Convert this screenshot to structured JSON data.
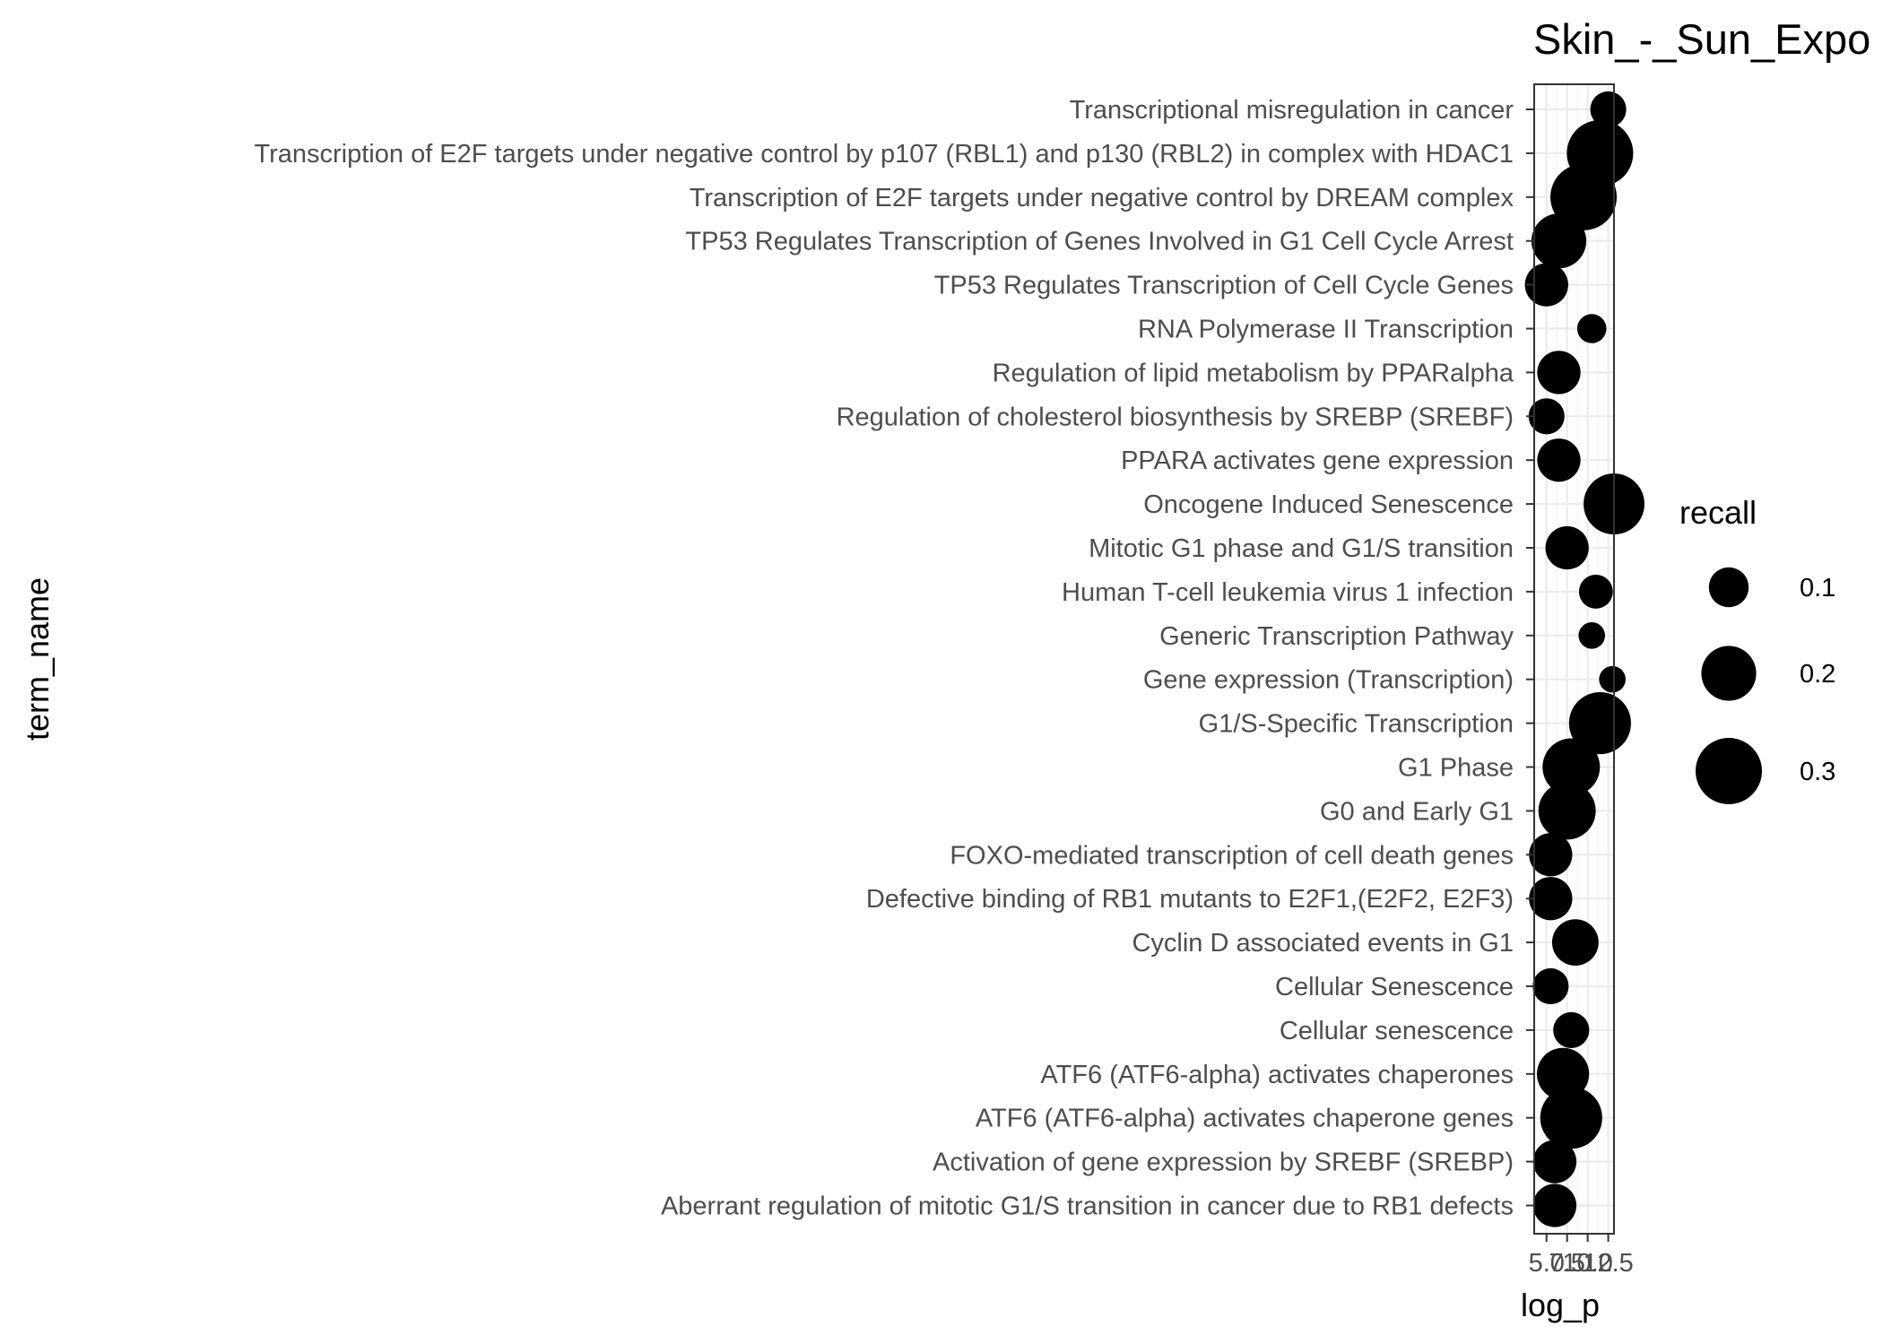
{
  "chart_data": {
    "type": "scatter",
    "title": "Skin_-_Sun_Expo",
    "xlabel": "log_p",
    "ylabel": "term_name",
    "x_ticks": [
      5.0,
      7.5,
      10.0,
      12.5
    ],
    "x_tick_labels": [
      "5.0",
      "7.5",
      "10.0",
      "12.5"
    ],
    "xlim": [
      3.5,
      13.2
    ],
    "grid": true,
    "legend": {
      "title": "recall",
      "placement": "right",
      "entries": [
        {
          "label": "0.1",
          "value": 0.1
        },
        {
          "label": "0.2",
          "value": 0.2
        },
        {
          "label": "0.3",
          "value": 0.3
        }
      ]
    },
    "categories": [
      "Transcriptional misregulation in cancer",
      "Transcription of E2F targets under negative control by p107 (RBL1) and p130 (RBL2) in complex with HDAC1",
      "Transcription of E2F targets under negative control by DREAM complex",
      "TP53 Regulates Transcription of Genes Involved in G1 Cell Cycle Arrest",
      "TP53 Regulates Transcription of Cell Cycle Genes",
      "RNA Polymerase II Transcription",
      "Regulation of lipid metabolism by PPARalpha",
      "Regulation of cholesterol biosynthesis by SREBP (SREBF)",
      "PPARA activates gene expression",
      "Oncogene Induced Senescence",
      "Mitotic G1 phase and G1/S transition",
      "Human T-cell leukemia virus 1 infection",
      "Generic Transcription Pathway",
      "Gene expression (Transcription)",
      "G1/S-Specific Transcription",
      "G1 Phase",
      "G0 and Early G1",
      "FOXO-mediated transcription of cell death genes",
      "Defective binding of RB1 mutants to E2F1,(E2F2, E2F3)",
      "Cyclin D associated events in G1",
      "Cellular Senescence",
      "Cellular senescence",
      "ATF6 (ATF6-alpha) activates chaperones",
      "ATF6 (ATF6-alpha) activates chaperone genes",
      "Activation of gene expression by SREBF (SREBP)",
      "Aberrant regulation of mitotic G1/S transition in cancer due to RB1 defects"
    ],
    "points": [
      {
        "term": "Transcriptional misregulation in cancer",
        "log_p": 12.5,
        "recall": 0.08
      },
      {
        "term": "Transcription of E2F targets under negative control by p107 (RBL1) and p130 (RBL2) in complex with HDAC1",
        "log_p": 11.5,
        "recall": 0.3
      },
      {
        "term": "Transcription of E2F targets under negative control by DREAM complex",
        "log_p": 9.5,
        "recall": 0.3
      },
      {
        "term": "TP53 Regulates Transcription of Genes Involved in G1 Cell Cycle Arrest",
        "log_p": 6.5,
        "recall": 0.2
      },
      {
        "term": "TP53 Regulates Transcription of Cell Cycle Genes",
        "log_p": 5.0,
        "recall": 0.12
      },
      {
        "term": "RNA Polymerase II Transcription",
        "log_p": 10.5,
        "recall": 0.05
      },
      {
        "term": "Regulation of lipid metabolism by PPARalpha",
        "log_p": 6.5,
        "recall": 0.12
      },
      {
        "term": "Regulation of cholesterol biosynthesis by SREBP (SREBF)",
        "log_p": 5.0,
        "recall": 0.08
      },
      {
        "term": "PPARA activates gene expression",
        "log_p": 6.5,
        "recall": 0.12
      },
      {
        "term": "Oncogene Induced Senescence",
        "log_p": 13.2,
        "recall": 0.25
      },
      {
        "term": "Mitotic G1 phase and G1/S transition",
        "log_p": 7.5,
        "recall": 0.12
      },
      {
        "term": "Human T-cell leukemia virus 1 infection",
        "log_p": 11.0,
        "recall": 0.07
      },
      {
        "term": "Generic Transcription Pathway",
        "log_p": 10.5,
        "recall": 0.04
      },
      {
        "term": "Gene expression (Transcription)",
        "log_p": 13.0,
        "recall": 0.04
      },
      {
        "term": "G1/S-Specific Transcription",
        "log_p": 11.5,
        "recall": 0.26
      },
      {
        "term": "G1 Phase",
        "log_p": 8.0,
        "recall": 0.22
      },
      {
        "term": "G0 and Early G1",
        "log_p": 7.5,
        "recall": 0.22
      },
      {
        "term": "FOXO-mediated transcription of cell death genes",
        "log_p": 5.5,
        "recall": 0.12
      },
      {
        "term": "Defective binding of RB1 mutants to E2F1,(E2F2, E2F3)",
        "log_p": 5.5,
        "recall": 0.12
      },
      {
        "term": "Cyclin D associated events in G1",
        "log_p": 8.5,
        "recall": 0.14
      },
      {
        "term": "Cellular Senescence",
        "log_p": 5.5,
        "recall": 0.08
      },
      {
        "term": "Cellular senescence",
        "log_p": 8.0,
        "recall": 0.08
      },
      {
        "term": "ATF6 (ATF6-alpha) activates chaperones",
        "log_p": 7.0,
        "recall": 0.18
      },
      {
        "term": "ATF6 (ATF6-alpha) activates chaperone genes",
        "log_p": 8.0,
        "recall": 0.26
      },
      {
        "term": "Activation of gene expression by SREBF (SREBP)",
        "log_p": 6.0,
        "recall": 0.12
      },
      {
        "term": "Aberrant regulation of mitotic G1/S transition in cancer due to RB1 defects",
        "log_p": 6.0,
        "recall": 0.12
      }
    ]
  }
}
